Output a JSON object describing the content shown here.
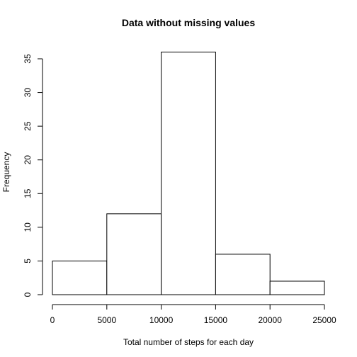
{
  "chart_data": {
    "type": "bar",
    "title": "Data without missing values",
    "xlabel": "Total number of steps for each day",
    "ylabel": "Frequency",
    "bins": [
      {
        "start": 0,
        "end": 5000,
        "value": 5
      },
      {
        "start": 5000,
        "end": 10000,
        "value": 12
      },
      {
        "start": 10000,
        "end": 15000,
        "value": 36
      },
      {
        "start": 15000,
        "end": 20000,
        "value": 6
      },
      {
        "start": 20000,
        "end": 25000,
        "value": 2
      }
    ],
    "xlim": [
      0,
      25000
    ],
    "ylim": [
      0,
      35
    ],
    "xticks": [
      0,
      5000,
      10000,
      15000,
      20000,
      25000
    ],
    "yticks": [
      0,
      5,
      10,
      15,
      20,
      25,
      30,
      35
    ],
    "grid": false,
    "bar_fill": "#ffffff",
    "bar_stroke": "#000000"
  }
}
